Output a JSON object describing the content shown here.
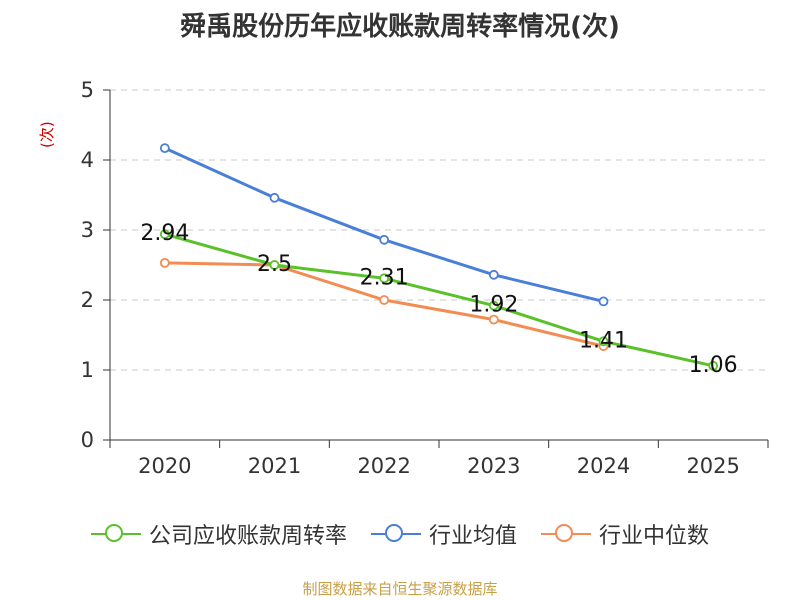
{
  "chart_data": {
    "type": "line",
    "title": "舜禹股份历年应收账款周转率情况(次)",
    "ylabel": "(次)",
    "xlabel": "",
    "categories": [
      "2020",
      "2021",
      "2022",
      "2023",
      "2024",
      "2025"
    ],
    "y_ticks": [
      "0",
      "1",
      "2",
      "3",
      "4",
      "5"
    ],
    "ylim": [
      0,
      5
    ],
    "grid": true,
    "legend_position": "bottom",
    "series": [
      {
        "name": "公司应收账款周转率",
        "color": "#5ac12b",
        "values": [
          2.94,
          2.5,
          2.31,
          1.92,
          1.41,
          1.06
        ],
        "labels": [
          "2.94",
          "2.5",
          "2.31",
          "1.92",
          "1.41",
          "1.06"
        ]
      },
      {
        "name": "行业均值",
        "color": "#4a7fd8",
        "values": [
          4.17,
          3.46,
          2.86,
          2.36,
          1.98,
          null
        ]
      },
      {
        "name": "行业中位数",
        "color": "#f28c52",
        "values": [
          2.53,
          2.5,
          2.0,
          1.72,
          1.34,
          null
        ]
      }
    ]
  },
  "source": "制图数据来自恒生聚源数据库"
}
